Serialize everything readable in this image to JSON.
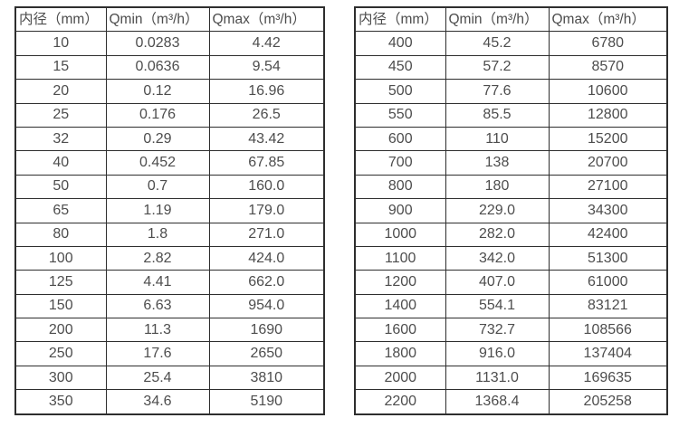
{
  "page": {
    "background_color": "#ffffff",
    "border_color": "#2e2e2e",
    "text_color": "#4d4d4d",
    "description": "Flow meter specification tables: inner diameter vs minimum and maximum flow rate"
  },
  "tables": [
    {
      "id": "small-diameters",
      "headers": [
        "内径（mm）",
        "Qmin（m³/h）",
        "Qmax（m³/h）"
      ],
      "rows": [
        [
          "10",
          "0.0283",
          "4.42"
        ],
        [
          "15",
          "0.0636",
          "9.54"
        ],
        [
          "20",
          "0.12",
          "16.96"
        ],
        [
          "25",
          "0.176",
          "26.5"
        ],
        [
          "32",
          "0.29",
          "43.42"
        ],
        [
          "40",
          "0.452",
          "67.85"
        ],
        [
          "50",
          "0.7",
          "160.0"
        ],
        [
          "65",
          "1.19",
          "179.0"
        ],
        [
          "80",
          "1.8",
          "271.0"
        ],
        [
          "100",
          "2.82",
          "424.0"
        ],
        [
          "125",
          "4.41",
          "662.0"
        ],
        [
          "150",
          "6.63",
          "954.0"
        ],
        [
          "200",
          "11.3",
          "1690"
        ],
        [
          "250",
          "17.6",
          "2650"
        ],
        [
          "300",
          "25.4",
          "3810"
        ],
        [
          "350",
          "34.6",
          "5190"
        ]
      ]
    },
    {
      "id": "large-diameters",
      "headers": [
        "内径（mm）",
        "Qmin（m³/h）",
        "Qmax（m³/h）"
      ],
      "rows": [
        [
          "400",
          "45.2",
          "6780"
        ],
        [
          "450",
          "57.2",
          "8570"
        ],
        [
          "500",
          "77.6",
          "10600"
        ],
        [
          "550",
          "85.5",
          "12800"
        ],
        [
          "600",
          "110",
          "15200"
        ],
        [
          "700",
          "138",
          "20700"
        ],
        [
          "800",
          "180",
          "27100"
        ],
        [
          "900",
          "229.0",
          "34300"
        ],
        [
          "1000",
          "282.0",
          "42400"
        ],
        [
          "1100",
          "342.0",
          "51300"
        ],
        [
          "1200",
          "407.0",
          "61000"
        ],
        [
          "1400",
          "554.1",
          "83121"
        ],
        [
          "1600",
          "732.7",
          "108566"
        ],
        [
          "1800",
          "916.0",
          "137404"
        ],
        [
          "2000",
          "1131.0",
          "169635"
        ],
        [
          "2200",
          "1368.4",
          "205258"
        ]
      ]
    }
  ]
}
